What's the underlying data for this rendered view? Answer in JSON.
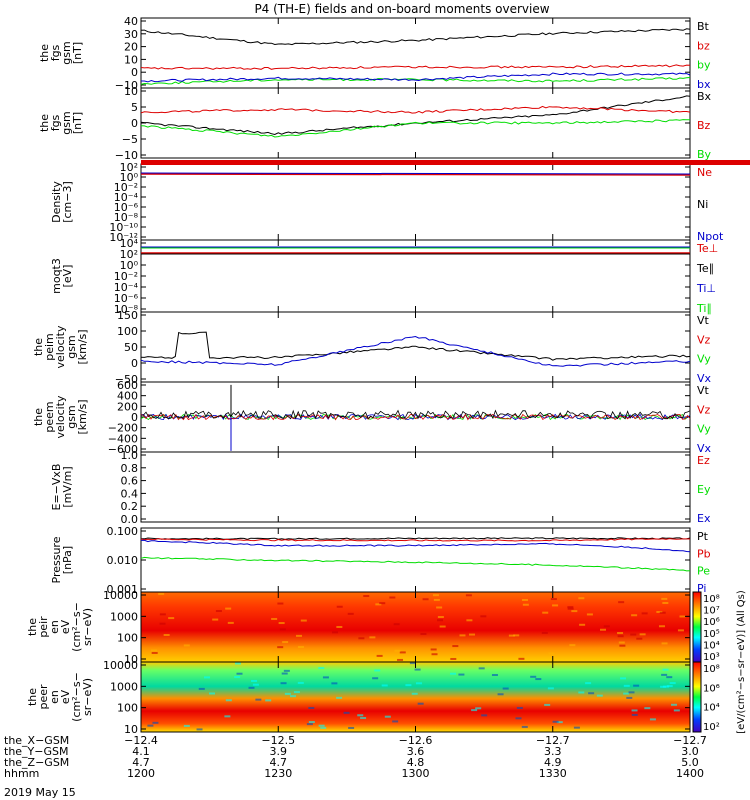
{
  "title": "P4 (TH-E) fields and on-board moments overview",
  "colors": {
    "black": "#000000",
    "red": "#dd0000",
    "green": "#00dd00",
    "blue": "#0000cc"
  },
  "panels": [
    {
      "ylabel": [
        "the",
        "fgs",
        "gsm",
        "[nT]"
      ],
      "ylim": [
        -10,
        40
      ],
      "ticks": [
        "40",
        "30",
        "20",
        "10",
        "0",
        "−10"
      ],
      "log": false,
      "legend": [
        {
          "t": "Bt",
          "c": "black"
        },
        {
          "t": "bz",
          "c": "red"
        },
        {
          "t": "by",
          "c": "green"
        },
        {
          "t": "bx",
          "c": "blue"
        }
      ]
    },
    {
      "ylabel": [
        "the",
        "fgs",
        "gsm",
        "[nT]"
      ],
      "ylim": [
        -13,
        13
      ],
      "ticks": [
        "10",
        "5",
        "0",
        "−5",
        "−10"
      ],
      "log": false,
      "legend": [
        {
          "t": "Bx",
          "c": "black"
        },
        {
          "t": "Bz",
          "c": "red"
        },
        {
          "t": "By",
          "c": "green"
        }
      ]
    },
    {
      "ylabel": [
        "Density",
        "[cm−3]"
      ],
      "ylim": [
        -12,
        3
      ],
      "ticks": [
        "10²",
        "10⁰",
        "10⁻²",
        "10⁻⁴",
        "10⁻⁶",
        "10⁻⁸",
        "10⁻¹⁰",
        "10⁻¹²"
      ],
      "log": true,
      "legend": [
        {
          "t": "Ne",
          "c": "red"
        },
        {
          "t": "Ni",
          "c": "black"
        },
        {
          "t": "Npot",
          "c": "blue"
        }
      ]
    },
    {
      "ylabel": [
        "moqt3",
        "[eV]"
      ],
      "ylim": [
        -9,
        4
      ],
      "ticks": [
        "10⁴",
        "10²",
        "10⁰",
        "10⁻²",
        "10⁻⁴",
        "10⁻⁶",
        "10⁻⁸"
      ],
      "log": true,
      "legend": [
        {
          "t": "Te⊥",
          "c": "red"
        },
        {
          "t": "Te∥",
          "c": "black"
        },
        {
          "t": "Ti⊥",
          "c": "blue"
        },
        {
          "t": "Ti∥",
          "c": "green"
        }
      ]
    },
    {
      "ylabel": [
        "the",
        "peim",
        "velocity",
        "gsm",
        "[km/s]"
      ],
      "ylim": [
        -50,
        150
      ],
      "ticks": [
        "150",
        "100",
        "50",
        "0",
        "−50"
      ],
      "log": false,
      "legend": [
        {
          "t": "Vt",
          "c": "black"
        },
        {
          "t": "Vz",
          "c": "red"
        },
        {
          "t": "Vy",
          "c": "green"
        },
        {
          "t": "Vx",
          "c": "blue"
        }
      ]
    },
    {
      "ylabel": [
        "the",
        "peem",
        "velocity",
        "gsm",
        "[km/s]"
      ],
      "ylim": [
        -600,
        600
      ],
      "ticks": [
        "600",
        "400",
        "200",
        "0",
        "−200",
        "−400",
        "−600"
      ],
      "log": false,
      "legend": [
        {
          "t": "Vt",
          "c": "black"
        },
        {
          "t": "Vz",
          "c": "red"
        },
        {
          "t": "Vy",
          "c": "green"
        },
        {
          "t": "Vx",
          "c": "blue"
        }
      ]
    },
    {
      "ylabel": [
        "E=−VxB",
        "[mV/m]"
      ],
      "ylim": [
        0,
        1
      ],
      "ticks": [
        "1.0",
        "0.8",
        "0.6",
        "0.4",
        "0.2",
        "0.0"
      ],
      "log": false,
      "legend": [
        {
          "t": "Ez",
          "c": "red"
        },
        {
          "t": "Ey",
          "c": "green"
        },
        {
          "t": "Ex",
          "c": "blue"
        }
      ]
    },
    {
      "ylabel": [
        "Pressure",
        "[nPa]"
      ],
      "ylim": [
        -3,
        0
      ],
      "ticks": [
        "0.100",
        "0.010",
        "0.001"
      ],
      "log": true,
      "legend": [
        {
          "t": "Pt",
          "c": "black"
        },
        {
          "t": "Pb",
          "c": "red"
        },
        {
          "t": "Pe",
          "c": "green"
        },
        {
          "t": "Pi",
          "c": "blue"
        }
      ]
    },
    {
      "ylabel": [
        "the",
        "peir",
        "en",
        "eV",
        "(cm²−s−",
        "sr−eV)"
      ],
      "ylim": [
        0.7,
        4.3
      ],
      "ticks": [
        "10000",
        "1000",
        "100",
        "10"
      ],
      "log": true,
      "legend": []
    },
    {
      "ylabel": [
        "the",
        "peer",
        "en",
        "eV",
        "(cm²−s−",
        "sr−eV)"
      ],
      "ylim": [
        0.7,
        4.3
      ],
      "ticks": [
        "10000",
        "1000",
        "100",
        "10"
      ],
      "log": true,
      "legend": []
    }
  ],
  "colorbar_upper": {
    "ticks": [
      "10⁸",
      "10⁷",
      "10⁶",
      "10⁵",
      "10⁴",
      "10³"
    ]
  },
  "colorbar_lower": {
    "ticks": [
      "10⁸",
      "10⁶",
      "10⁴",
      "10²"
    ]
  },
  "colorbar_label": "[eV/(cm²−s−sr−eV)] (All Qs)",
  "axis_rows": [
    {
      "label": "the_X−GSM",
      "values": [
        "−12.4",
        "−12.5",
        "−12.6",
        "−12.7",
        "−12.7"
      ]
    },
    {
      "label": "the_Y−GSM",
      "values": [
        "4.1",
        "3.9",
        "3.6",
        "3.3",
        "3.0"
      ]
    },
    {
      "label": "the_Z−GSM",
      "values": [
        "4.7",
        "4.7",
        "4.8",
        "4.9",
        "5.0"
      ]
    },
    {
      "label": "hhmm",
      "values": [
        "1200",
        "1230",
        "1300",
        "1330",
        "1400"
      ]
    }
  ],
  "date": "2019 May 15",
  "chart_data": {
    "type": "line",
    "title": "P4 (TH-E) fields and on-board moments overview",
    "x_label": "hhmm",
    "x": [
      "1200",
      "1230",
      "1300",
      "1330",
      "1400"
    ],
    "series": [
      {
        "name": "Bt",
        "panel": 0,
        "values": [
          31,
          21,
          24,
          29,
          32
        ]
      },
      {
        "name": "bz",
        "panel": 0,
        "values": [
          4,
          4,
          5,
          5,
          6
        ]
      },
      {
        "name": "by",
        "panel": 0,
        "values": [
          -7,
          -4,
          -4,
          -5,
          -3
        ]
      },
      {
        "name": "bx",
        "panel": 0,
        "values": [
          -5,
          -3,
          -4,
          0,
          0
        ]
      },
      {
        "name": "Bx",
        "panel": 1,
        "values": [
          0,
          -4,
          0,
          3,
          10
        ]
      },
      {
        "name": "Bz",
        "panel": 1,
        "values": [
          4,
          5,
          4,
          6,
          4
        ]
      },
      {
        "name": "By",
        "panel": 1,
        "values": [
          -1,
          -5,
          0,
          0,
          1
        ]
      },
      {
        "name": "Vt",
        "panel": 4,
        "values": [
          20,
          20,
          50,
          15,
          25
        ]
      },
      {
        "name": "Vx",
        "panel": 4,
        "values": [
          10,
          0,
          80,
          -5,
          10
        ]
      },
      {
        "name": "Pt",
        "panel": 7,
        "values": [
          0.32,
          0.31,
          0.33,
          0.33,
          0.32
        ]
      },
      {
        "name": "Pb",
        "panel": 7,
        "values": [
          0.3,
          0.27,
          0.26,
          0.26,
          0.32
        ]
      },
      {
        "name": "Pi",
        "panel": 7,
        "values": [
          0.25,
          0.15,
          0.15,
          0.18,
          0.08
        ]
      },
      {
        "name": "Pe",
        "panel": 7,
        "values": [
          0.04,
          0.03,
          0.025,
          0.018,
          0.01
        ]
      }
    ]
  }
}
